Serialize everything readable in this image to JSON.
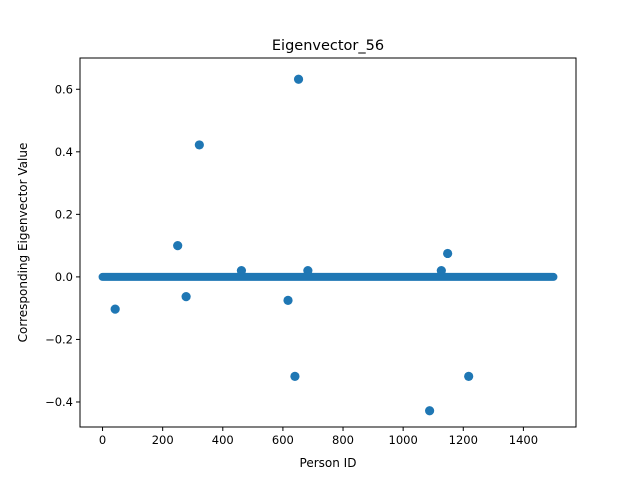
{
  "chart_data": {
    "type": "scatter",
    "title": "Eigenvector_56",
    "xlabel": "Person ID",
    "ylabel": "Corresponding Eigenvector Value",
    "xlim": [
      -75,
      1575
    ],
    "ylim": [
      -0.48,
      0.7
    ],
    "xticks": [
      0,
      200,
      400,
      600,
      800,
      1000,
      1200,
      1400
    ],
    "yticks": [
      -0.4,
      -0.2,
      0.0,
      0.2,
      0.4,
      0.6
    ],
    "ytick_labels": [
      "−0.4",
      "−0.2",
      "0.0",
      "0.2",
      "0.4",
      "0.6"
    ],
    "grid": false,
    "color": "#1f77b4",
    "baseline": {
      "x_start": 0,
      "x_end": 1500,
      "value": 0.0
    },
    "points": [
      {
        "x": 42,
        "y": -0.103
      },
      {
        "x": 250,
        "y": 0.1
      },
      {
        "x": 278,
        "y": -0.063
      },
      {
        "x": 322,
        "y": 0.422
      },
      {
        "x": 462,
        "y": 0.02
      },
      {
        "x": 617,
        "y": -0.075
      },
      {
        "x": 640,
        "y": -0.318
      },
      {
        "x": 652,
        "y": 0.632
      },
      {
        "x": 683,
        "y": 0.02
      },
      {
        "x": 1088,
        "y": -0.428
      },
      {
        "x": 1127,
        "y": 0.02
      },
      {
        "x": 1148,
        "y": 0.075
      },
      {
        "x": 1218,
        "y": -0.318
      }
    ]
  }
}
